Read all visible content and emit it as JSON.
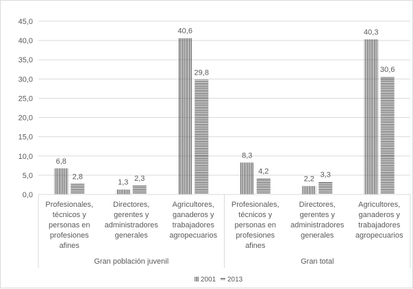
{
  "chart_data": {
    "type": "bar",
    "groups": [
      {
        "label": "Gran población juvenil",
        "categories": [
          "Profesionales, técnicos y personas en profesiones afines",
          "Directores, gerentes y administradores generales",
          "Agricultores, ganaderos y trabajadores agropecuarios"
        ]
      },
      {
        "label": "Gran total",
        "categories": [
          "Profesionales, técnicos y personas en profesiones afines",
          "Directores, gerentes y administradores generales",
          "Agricultores, ganaderos y trabajadores agropecuarios"
        ]
      }
    ],
    "category_lines": [
      [
        "Profesionales,",
        "técnicos y",
        "personas en",
        "profesiones",
        "afines"
      ],
      [
        "Directores,",
        "gerentes y",
        "administradores",
        "generales"
      ],
      [
        "Agricultores,",
        "ganaderos y",
        "trabajadores",
        "agropecuarios"
      ],
      [
        "Profesionales,",
        "técnicos y",
        "personas en",
        "profesiones",
        "afines"
      ],
      [
        "Directores,",
        "gerentes y",
        "administradores",
        "generales"
      ],
      [
        "Agricultores,",
        "ganaderos y",
        "trabajadores",
        "agropecuarios"
      ]
    ],
    "series": [
      {
        "name": "2001",
        "values": [
          6.8,
          1.3,
          40.6,
          8.3,
          2.2,
          40.3
        ],
        "labels": [
          "6,8",
          "1,3",
          "40,6",
          "8,3",
          "2,2",
          "40,3"
        ],
        "pattern": "vertical-lines"
      },
      {
        "name": "2013",
        "values": [
          2.8,
          2.3,
          29.8,
          4.2,
          3.3,
          30.6
        ],
        "labels": [
          "2,8",
          "2,3",
          "29,8",
          "4,2",
          "3,3",
          "30,6"
        ],
        "pattern": "horizontal-lines"
      }
    ],
    "y_ticks": [
      "0,0",
      "5,0",
      "10,0",
      "15,0",
      "20,0",
      "25,0",
      "30,0",
      "35,0",
      "40,0",
      "45,0"
    ],
    "ylim": [
      0,
      45
    ],
    "ystep": 5,
    "grid": true,
    "legend_position": "bottom",
    "colors": {
      "bar": "#595959",
      "grid": "#d9d9d9",
      "text": "#595959"
    }
  }
}
